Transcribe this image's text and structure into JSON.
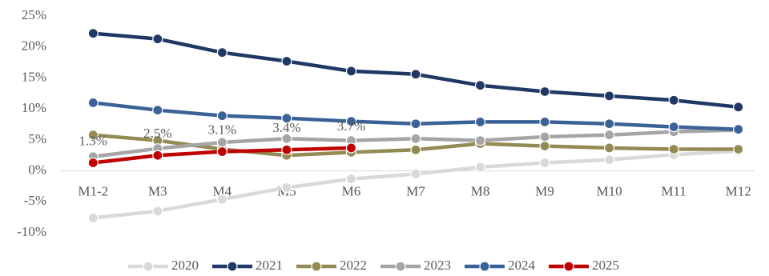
{
  "chart_data": {
    "type": "line",
    "categories": [
      "M1-2",
      "M3",
      "M4",
      "M5",
      "M6",
      "M7",
      "M8",
      "M9",
      "M10",
      "M11",
      "M12"
    ],
    "series": [
      {
        "name": "2020",
        "color": "#d9d9d9",
        "values": [
          -7.6,
          -6.5,
          -4.6,
          -2.7,
          -1.3,
          -0.5,
          0.6,
          1.3,
          1.8,
          2.6,
          3.2
        ]
      },
      {
        "name": "2021",
        "color": "#1f3864",
        "values": [
          22.2,
          21.3,
          19.1,
          17.7,
          16.1,
          15.6,
          13.8,
          12.8,
          12.1,
          11.4,
          10.3
        ]
      },
      {
        "name": "2022",
        "color": "#948a54",
        "values": [
          5.8,
          4.9,
          3.5,
          2.5,
          3.0,
          3.4,
          4.4,
          4.0,
          3.7,
          3.5,
          3.5
        ]
      },
      {
        "name": "2023",
        "color": "#a5a5a5",
        "values": [
          2.3,
          3.6,
          4.6,
          5.2,
          4.9,
          5.2,
          4.9,
          5.5,
          5.8,
          6.3,
          6.6
        ]
      },
      {
        "name": "2024",
        "color": "#3a6296",
        "values": [
          11.0,
          9.8,
          8.9,
          8.5,
          8.0,
          7.6,
          7.9,
          7.9,
          7.6,
          7.1,
          6.7
        ]
      },
      {
        "name": "2025",
        "color": "#c00000",
        "values": [
          1.3,
          2.5,
          3.1,
          3.4,
          3.7,
          null,
          null,
          null,
          null,
          null,
          null
        ],
        "value_labels": [
          "1.3%",
          "2.5%",
          "3.1%",
          "3.4%",
          "3.7%",
          null,
          null,
          null,
          null,
          null,
          null
        ]
      }
    ],
    "ylim": [
      -10,
      25
    ],
    "yticks": [
      {
        "value": -10,
        "label": "-10%"
      },
      {
        "value": -5,
        "label": "-5%"
      },
      {
        "value": 0,
        "label": "0%"
      },
      {
        "value": 5,
        "label": "5%"
      },
      {
        "value": 10,
        "label": "10%"
      },
      {
        "value": 15,
        "label": "15%"
      },
      {
        "value": 20,
        "label": "20%"
      },
      {
        "value": 25,
        "label": "25%"
      }
    ],
    "grid": false,
    "legend": "bottom"
  }
}
